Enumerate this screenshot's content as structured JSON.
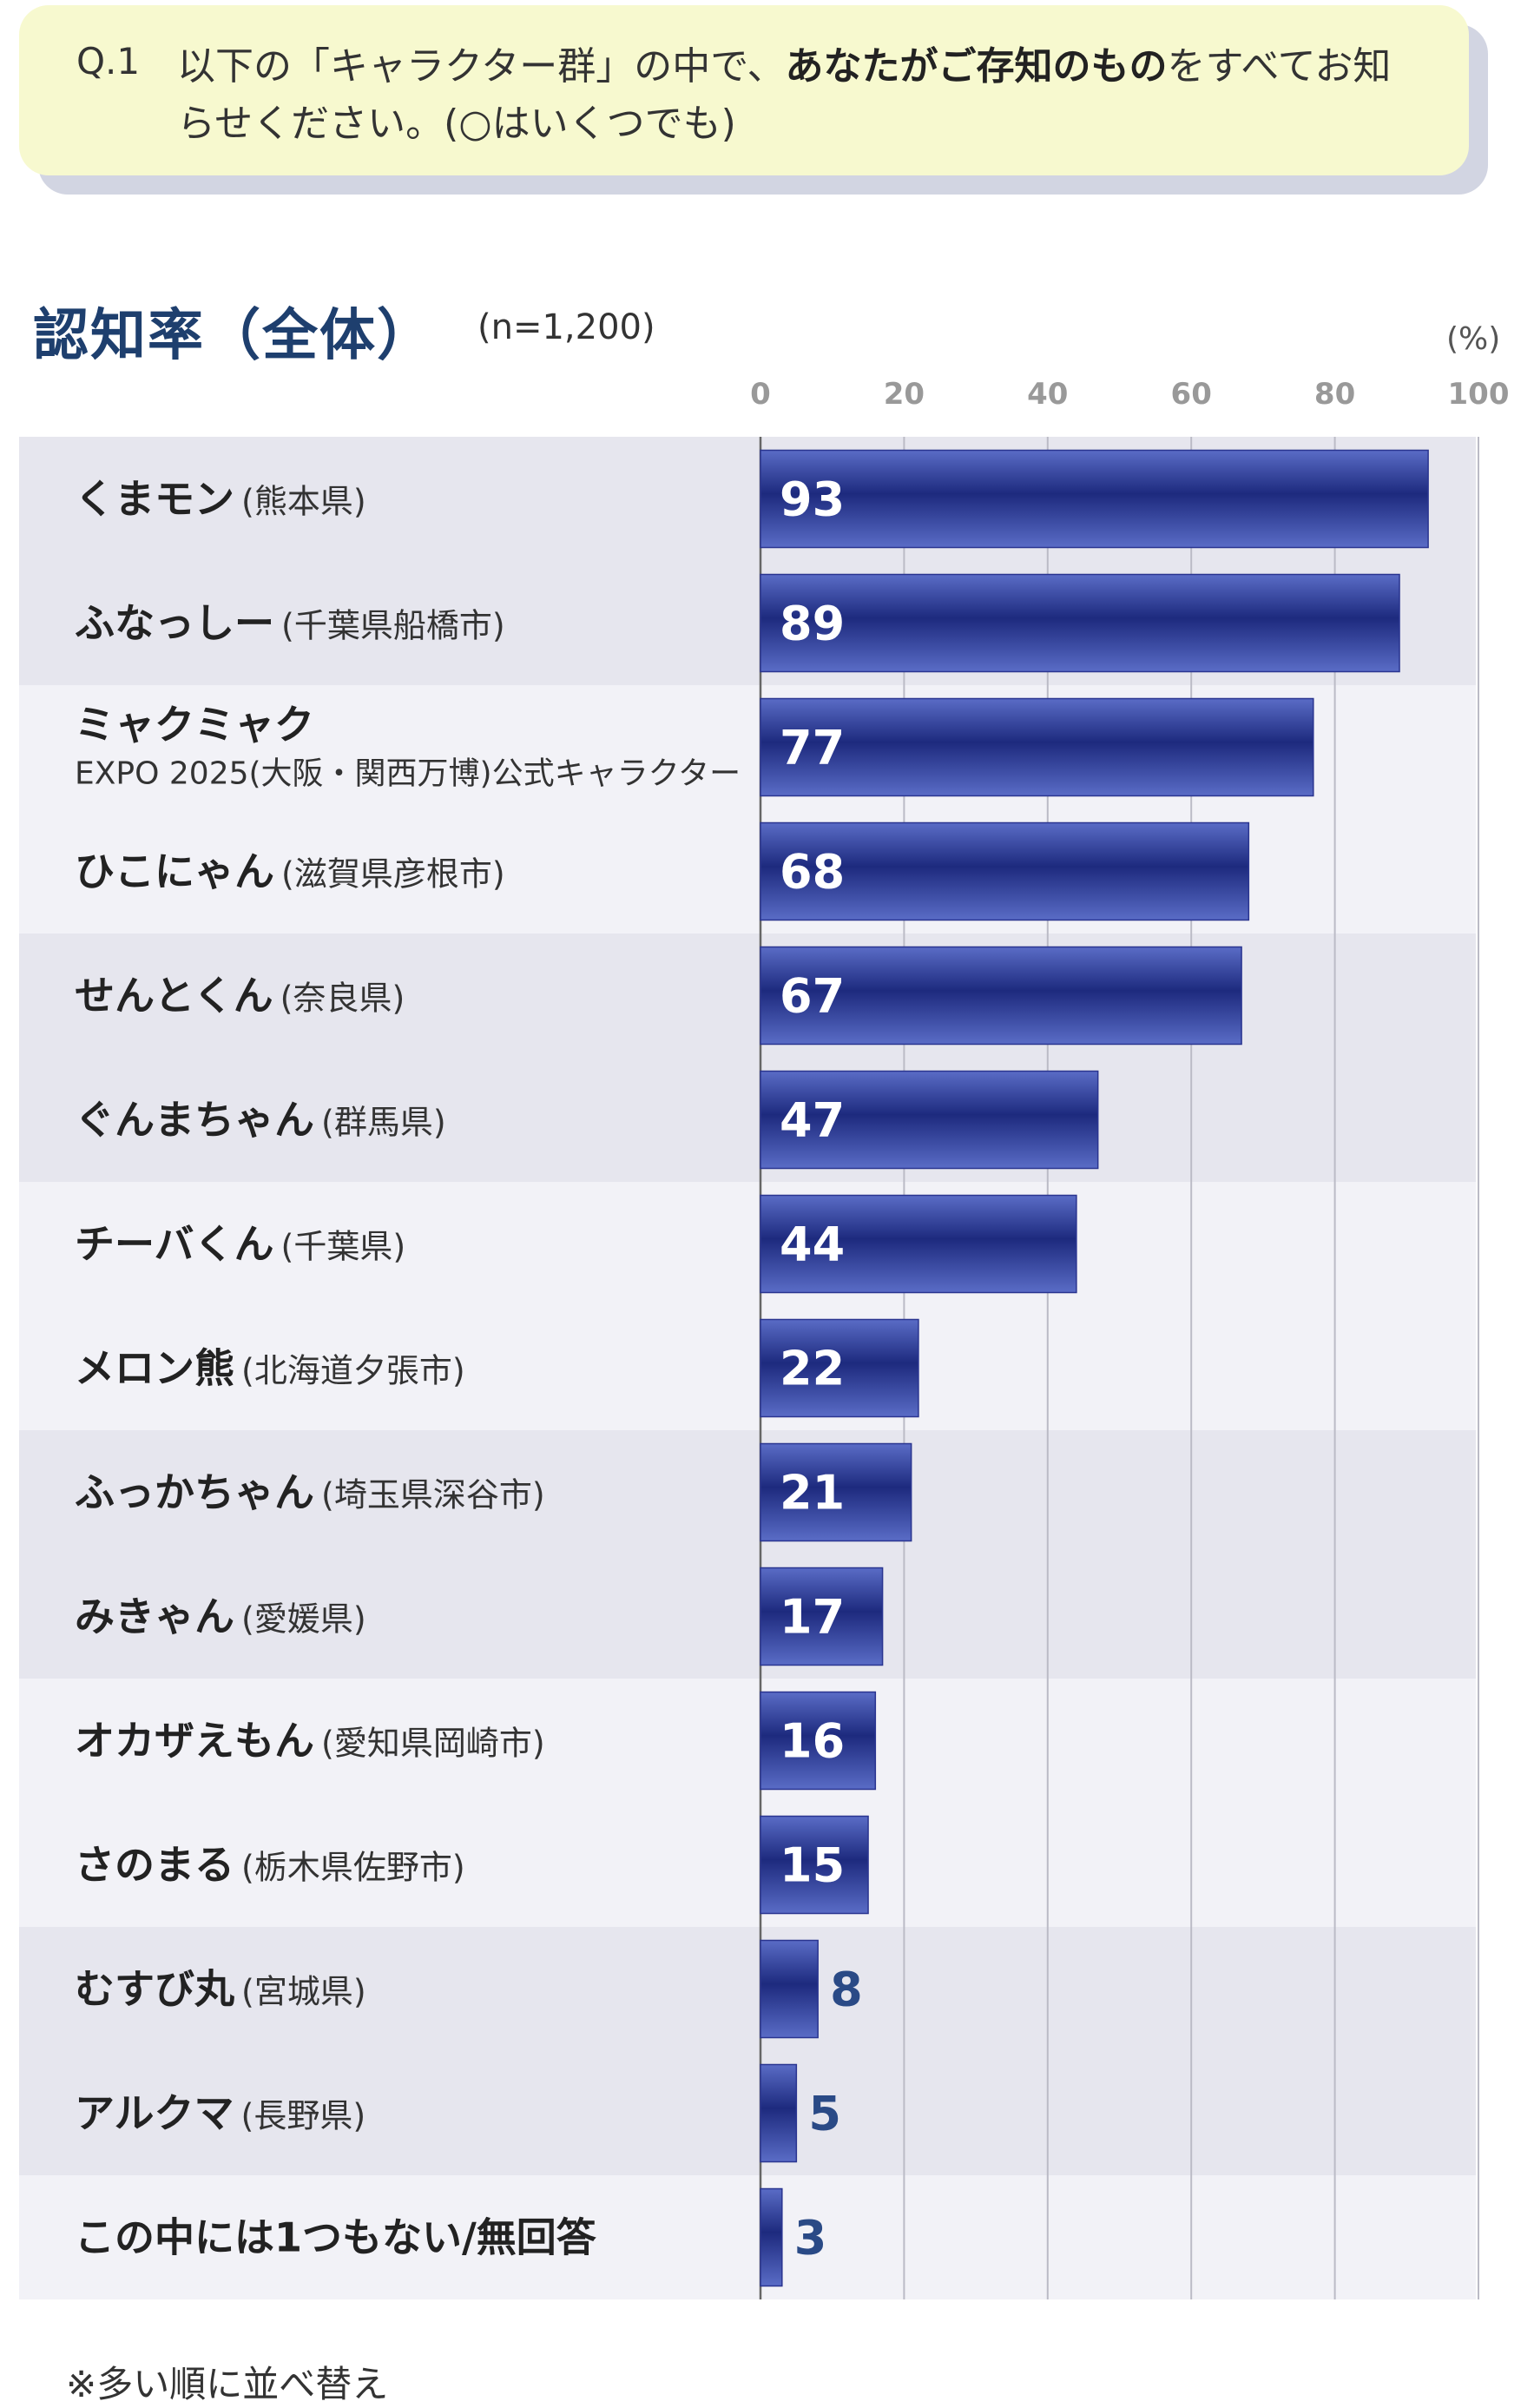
{
  "question": {
    "number": "Q.1",
    "text_part1": "以下の「キャラクター群」の中で、",
    "text_bold": "あなたがご存知のもの",
    "text_part2": "をすべてお知らせください。(○はいくつでも)"
  },
  "chart_title": "認知率（全体）",
  "sample_size": "(n=1,200)",
  "unit_label": "(%)",
  "footnote": "※多い順に並べ替え",
  "colors": {
    "bar_light": "#5a6cc6",
    "bar_dark": "#1d2a7e",
    "band": "#e6e6ee",
    "band_alt": "#f2f2f7",
    "value_outside": "#2a4a86"
  },
  "chart_data": {
    "type": "bar",
    "orientation": "horizontal",
    "title": "認知率（全体）",
    "xlim": [
      0,
      100
    ],
    "ticks": [
      0,
      20,
      40,
      60,
      80,
      100
    ],
    "grid": true,
    "categories": [
      {
        "name": "くまモン",
        "sub": "(熊本県)",
        "value": 93
      },
      {
        "name": "ふなっしー",
        "sub": "(千葉県船橋市)",
        "value": 89
      },
      {
        "name": "ミャクミャク",
        "sub2": "EXPO 2025(大阪・関西万博)公式キャラクター",
        "value": 77
      },
      {
        "name": "ひこにゃん",
        "sub": "(滋賀県彦根市)",
        "value": 68
      },
      {
        "name": "せんとくん",
        "sub": "(奈良県)",
        "value": 67
      },
      {
        "name": "ぐんまちゃん",
        "sub": "(群馬県)",
        "value": 47
      },
      {
        "name": "チーバくん",
        "sub": "(千葉県)",
        "value": 44
      },
      {
        "name": "メロン熊",
        "sub": "(北海道夕張市)",
        "value": 22
      },
      {
        "name": "ふっかちゃん",
        "sub": "(埼玉県深谷市)",
        "value": 21
      },
      {
        "name": "みきゃん",
        "sub": "(愛媛県)",
        "value": 17
      },
      {
        "name": "オカザえもん",
        "sub": "(愛知県岡崎市)",
        "value": 16
      },
      {
        "name": "さのまる",
        "sub": "(栃木県佐野市)",
        "value": 15
      },
      {
        "name": "むすび丸",
        "sub": "(宮城県)",
        "value": 8
      },
      {
        "name": "アルクマ",
        "sub": "(長野県)",
        "value": 5
      },
      {
        "name": "この中には1つもない/無回答",
        "value": 3
      }
    ]
  }
}
